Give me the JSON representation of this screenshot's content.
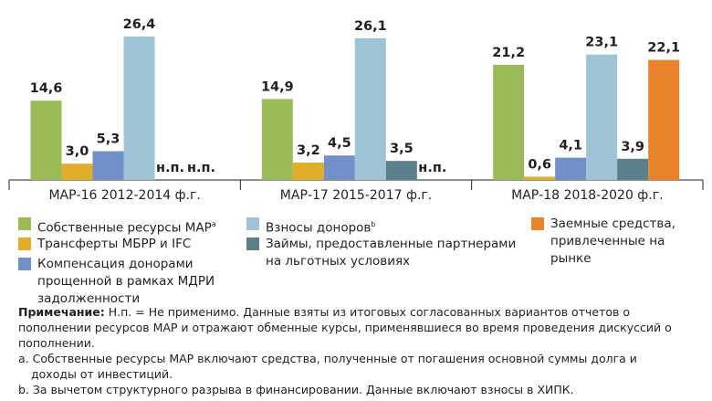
{
  "chart_data": {
    "type": "bar",
    "categories": [
      "МАР-16 2012-2014 ф.г.",
      "МАР-17 2015-2017 ф.г.",
      "МАР-18 2018-2020 ф.г."
    ],
    "series": [
      {
        "name": "Собственные ресурсы МАР",
        "name_note": "a",
        "color": "#9bbb59",
        "values": [
          14.6,
          14.9,
          21.2
        ],
        "value_labels": [
          "14,6",
          "14,9",
          "21,2"
        ]
      },
      {
        "name": "Трансферты МБРР и IFC",
        "color": "#e1ad2b",
        "values": [
          3.0,
          3.2,
          0.6
        ],
        "value_labels": [
          "3,0",
          "3,2",
          "0,6"
        ]
      },
      {
        "name": "Компенсация донорами прощенной в рамках МДРИ задолженности",
        "color": "#7190c8",
        "values": [
          5.3,
          4.5,
          4.1
        ],
        "value_labels": [
          "5,3",
          "4,5",
          "4,1"
        ]
      },
      {
        "name": "Взносы доноров",
        "name_note": "b",
        "color": "#9dc3d5",
        "values": [
          26.4,
          26.1,
          23.1
        ],
        "value_labels": [
          "26,4",
          "26,1",
          "23,1"
        ]
      },
      {
        "name": "Займы, предоставленные партнерами на льготных условиях",
        "color": "#5b7f8b",
        "values": [
          null,
          3.5,
          3.9
        ],
        "value_labels": [
          "н.п.",
          "3,5",
          "3,9"
        ]
      },
      {
        "name": "Заемные средства, привлеченные на рынке",
        "color": "#e8832a",
        "values": [
          null,
          null,
          22.1
        ],
        "value_labels": [
          "н.п.",
          "н.п.",
          "22,1"
        ]
      }
    ],
    "ylim": [
      0,
      28
    ],
    "grid": false
  },
  "notes": {
    "title": "Примечание:",
    "text": "Н.п. = Не применимо. Данные взяты из итоговых согласованных вариантов отчетов о пополнении ресурсов МАР и отражают обменные курсы, применявшиеся во время проведения дискуссий о пополнении.",
    "footnotes": [
      "a. Собственные ресурсы МАР включают средства, полученные от погашения основной суммы долга и доходы от инвестиций.",
      "b. За вычетом структурного разрыва в финансировании. Данные включают взносы в ХИПК."
    ]
  }
}
